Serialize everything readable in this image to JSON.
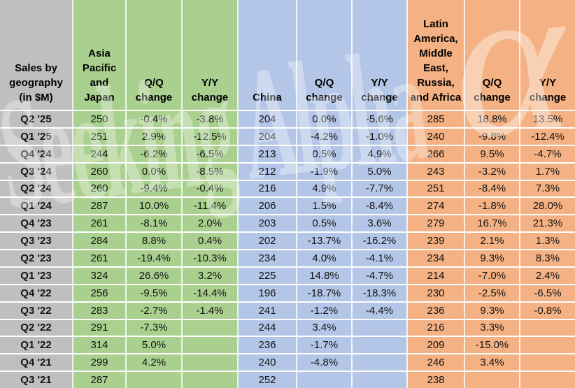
{
  "title": "Sales by geography (in $M)",
  "colors": {
    "label_column": "#BFBFBF",
    "asia_group": "#A9D08E",
    "china_group": "#B4C6E7",
    "latam_group": "#F4B183",
    "gridline": "#FFFFFF",
    "text": "#000000"
  },
  "table": {
    "corner_header": "Sales by geography (in $M)",
    "groups": [
      {
        "label": "Asia Pacific and Japan",
        "qq_label": "Q/Q change",
        "yy_label": "Y/Y change"
      },
      {
        "label": "China",
        "qq_label": "Q/Q change",
        "yy_label": "Y/Y change"
      },
      {
        "label": "Latin America, Middle East, Russia, and Africa",
        "qq_label": "Q/Q change",
        "yy_label": "Y/Y change"
      }
    ]
  },
  "watermark": {
    "text": "Seeking Alpha",
    "alpha_glyph": "α"
  },
  "chart_data": {
    "type": "table",
    "title": "Sales by geography (in $M)",
    "columns": [
      "Sales by geography (in $M)",
      "Asia Pacific and Japan",
      "Q/Q change",
      "Y/Y change",
      "China",
      "Q/Q change",
      "Y/Y change",
      "Latin America, Middle East, Russia, and Africa",
      "Q/Q change",
      "Y/Y change"
    ],
    "rows": [
      [
        "Q2 '25",
        "250",
        "-0.4%",
        "-3.8%",
        "204",
        "0.0%",
        "-5.6%",
        "285",
        "18.8%",
        "13.5%"
      ],
      [
        "Q1 '25",
        "251",
        "2.9%",
        "-12.5%",
        "204",
        "-4.2%",
        "-1.0%",
        "240",
        "-9.8%",
        "-12.4%"
      ],
      [
        "Q4 '24",
        "244",
        "-6.2%",
        "-6.5%",
        "213",
        "0.5%",
        "4.9%",
        "266",
        "9.5%",
        "-4.7%"
      ],
      [
        "Q3 '24",
        "260",
        "0.0%",
        "-8.5%",
        "212",
        "-1.9%",
        "5.0%",
        "243",
        "-3.2%",
        "1.7%"
      ],
      [
        "Q2 '24",
        "260",
        "-9.4%",
        "-0.4%",
        "216",
        "4.9%",
        "-7.7%",
        "251",
        "-8.4%",
        "7.3%"
      ],
      [
        "Q1 '24",
        "287",
        "10.0%",
        "-11.4%",
        "206",
        "1.5%",
        "-8.4%",
        "274",
        "-1.8%",
        "28.0%"
      ],
      [
        "Q4 '23",
        "261",
        "-8.1%",
        "2.0%",
        "203",
        "0.5%",
        "3.6%",
        "279",
        "16.7%",
        "21.3%"
      ],
      [
        "Q3 '23",
        "284",
        "8.8%",
        "0.4%",
        "202",
        "-13.7%",
        "-16.2%",
        "239",
        "2.1%",
        "1.3%"
      ],
      [
        "Q2 '23",
        "261",
        "-19.4%",
        "-10.3%",
        "234",
        "4.0%",
        "-4.1%",
        "234",
        "9.3%",
        "8.3%"
      ],
      [
        "Q1 '23",
        "324",
        "26.6%",
        "3.2%",
        "225",
        "14.8%",
        "-4.7%",
        "214",
        "-7.0%",
        "2.4%"
      ],
      [
        "Q4 '22",
        "256",
        "-9.5%",
        "-14.4%",
        "196",
        "-18.7%",
        "-18.3%",
        "230",
        "-2.5%",
        "-6.5%"
      ],
      [
        "Q3 '22",
        "283",
        "-2.7%",
        "-1.4%",
        "241",
        "-1.2%",
        "-4.4%",
        "236",
        "9.3%",
        "-0.8%"
      ],
      [
        "Q2 '22",
        "291",
        "-7.3%",
        "",
        "244",
        "3.4%",
        "",
        "216",
        "3.3%",
        ""
      ],
      [
        "Q1 '22",
        "314",
        "5.0%",
        "",
        "236",
        "-1.7%",
        "",
        "209",
        "-15.0%",
        ""
      ],
      [
        "Q4 '21",
        "299",
        "4.2%",
        "",
        "240",
        "-4.8%",
        "",
        "246",
        "3.4%",
        ""
      ],
      [
        "Q3 '21",
        "287",
        "",
        "",
        "252",
        "",
        "",
        "238",
        "",
        ""
      ]
    ]
  }
}
